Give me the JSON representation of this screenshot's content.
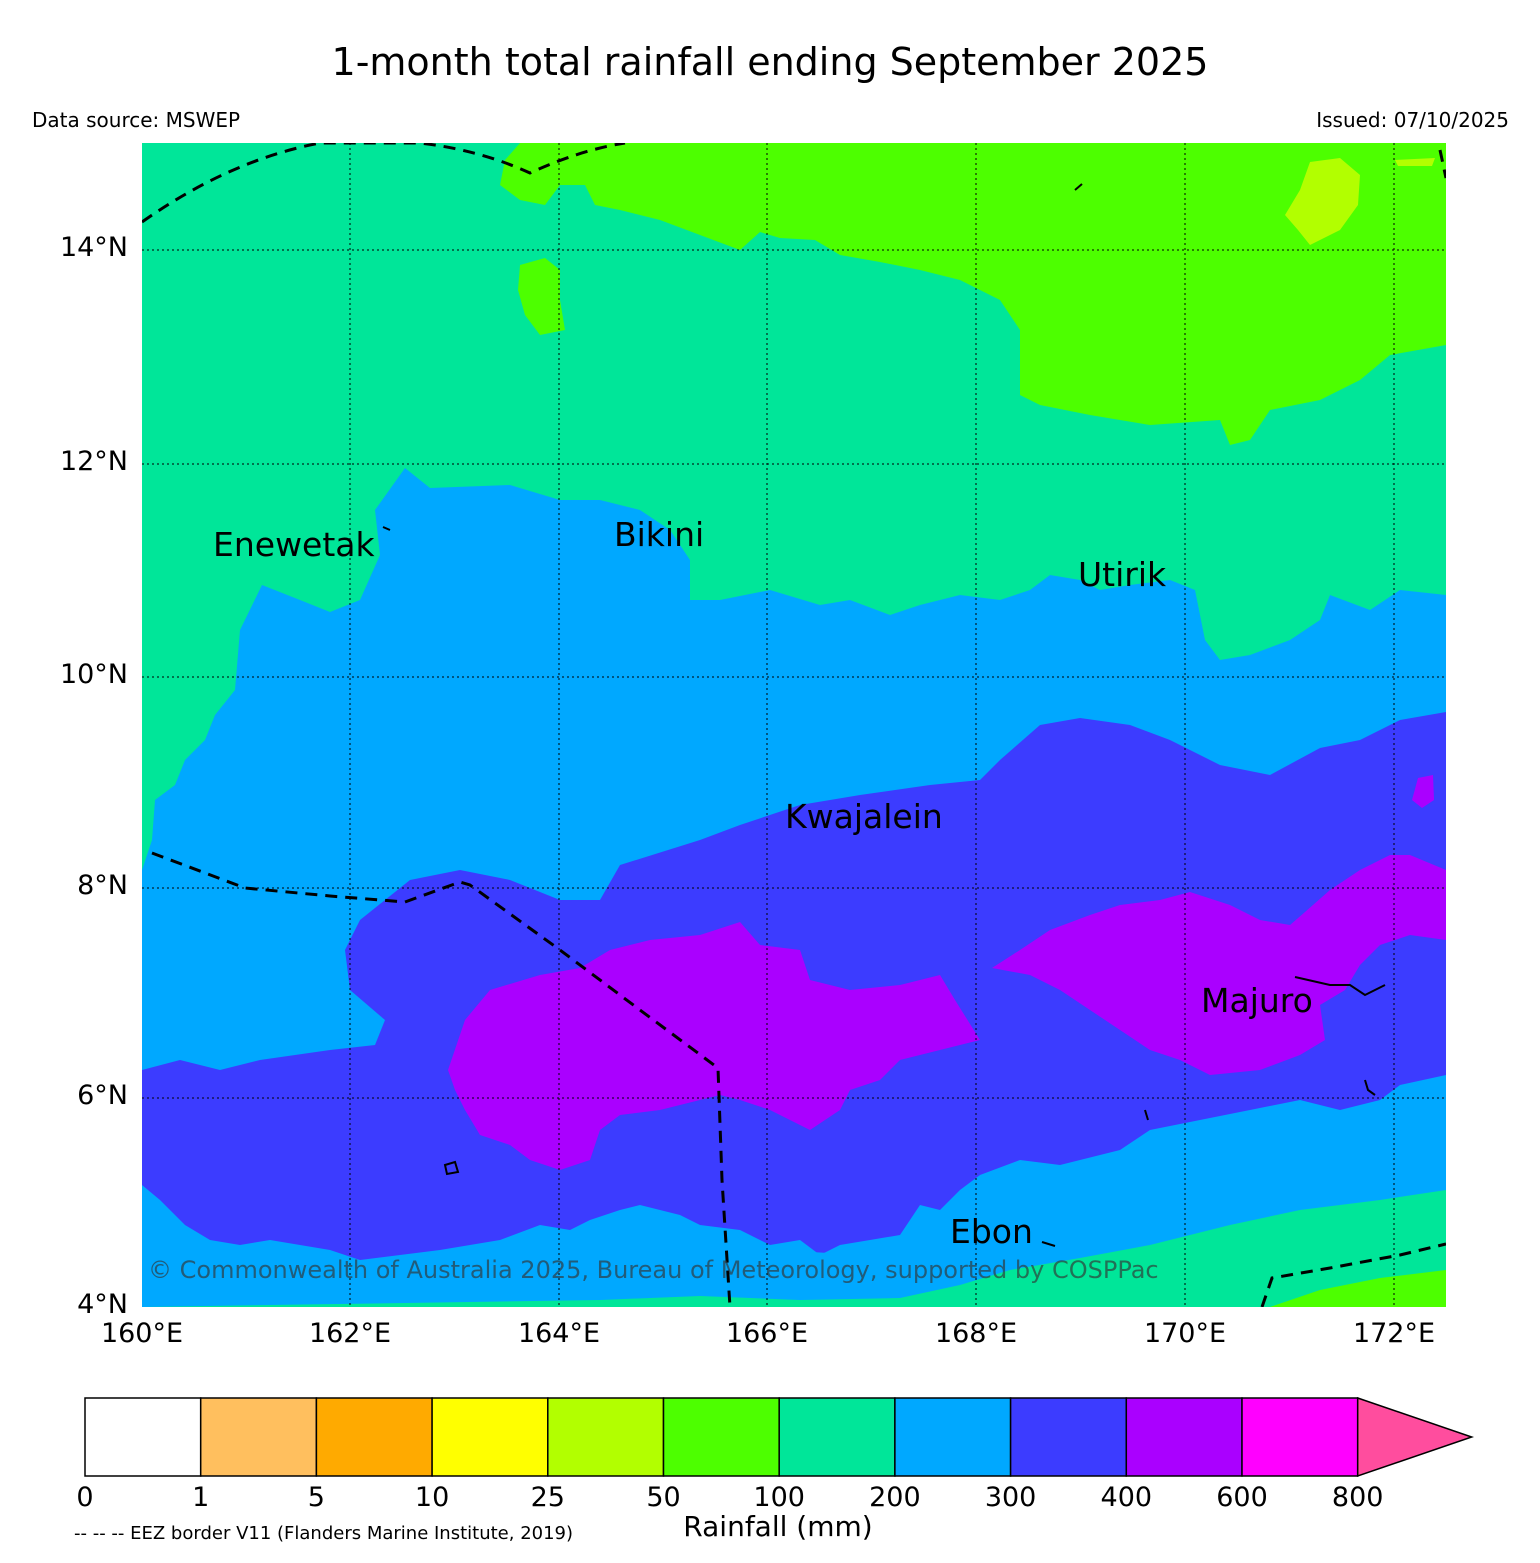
{
  "title": "1-month total rainfall ending September 2025",
  "data_source": "Data source: MSWEP",
  "issued": "Issued: 07/10/2025",
  "copyright": "© Commonwealth of Australia 2025, Bureau of Meteorology, supported by COSPPac",
  "latitude_ticks": [
    "14°N",
    "12°N",
    "10°N",
    "8°N",
    "6°N",
    "4°N"
  ],
  "longitude_ticks": [
    "160°E",
    "162°E",
    "164°E",
    "166°E",
    "168°E",
    "170°E",
    "172°E"
  ],
  "places": [
    {
      "name": "Enewetak"
    },
    {
      "name": "Bikini"
    },
    {
      "name": "Utirik"
    },
    {
      "name": "Kwajalein"
    },
    {
      "name": "Majuro"
    },
    {
      "name": "Ebon"
    }
  ],
  "legend": {
    "title": "Rainfall (mm)",
    "boundaries": [
      "0",
      "1",
      "5",
      "10",
      "25",
      "50",
      "100",
      "200",
      "300",
      "400",
      "600",
      "800"
    ],
    "colors": [
      "#ffffff",
      "#ffbf5e",
      "#ffaa00",
      "#ffff00",
      "#b2ff00",
      "#4dff00",
      "#00e699",
      "#00a8ff",
      "#3c3cff",
      "#aa00ff",
      "#ff00ff",
      "#ff4d9e"
    ]
  },
  "eez_note": "-- -- -- EEZ border V11 (Flanders Marine Institute, 2019)"
}
